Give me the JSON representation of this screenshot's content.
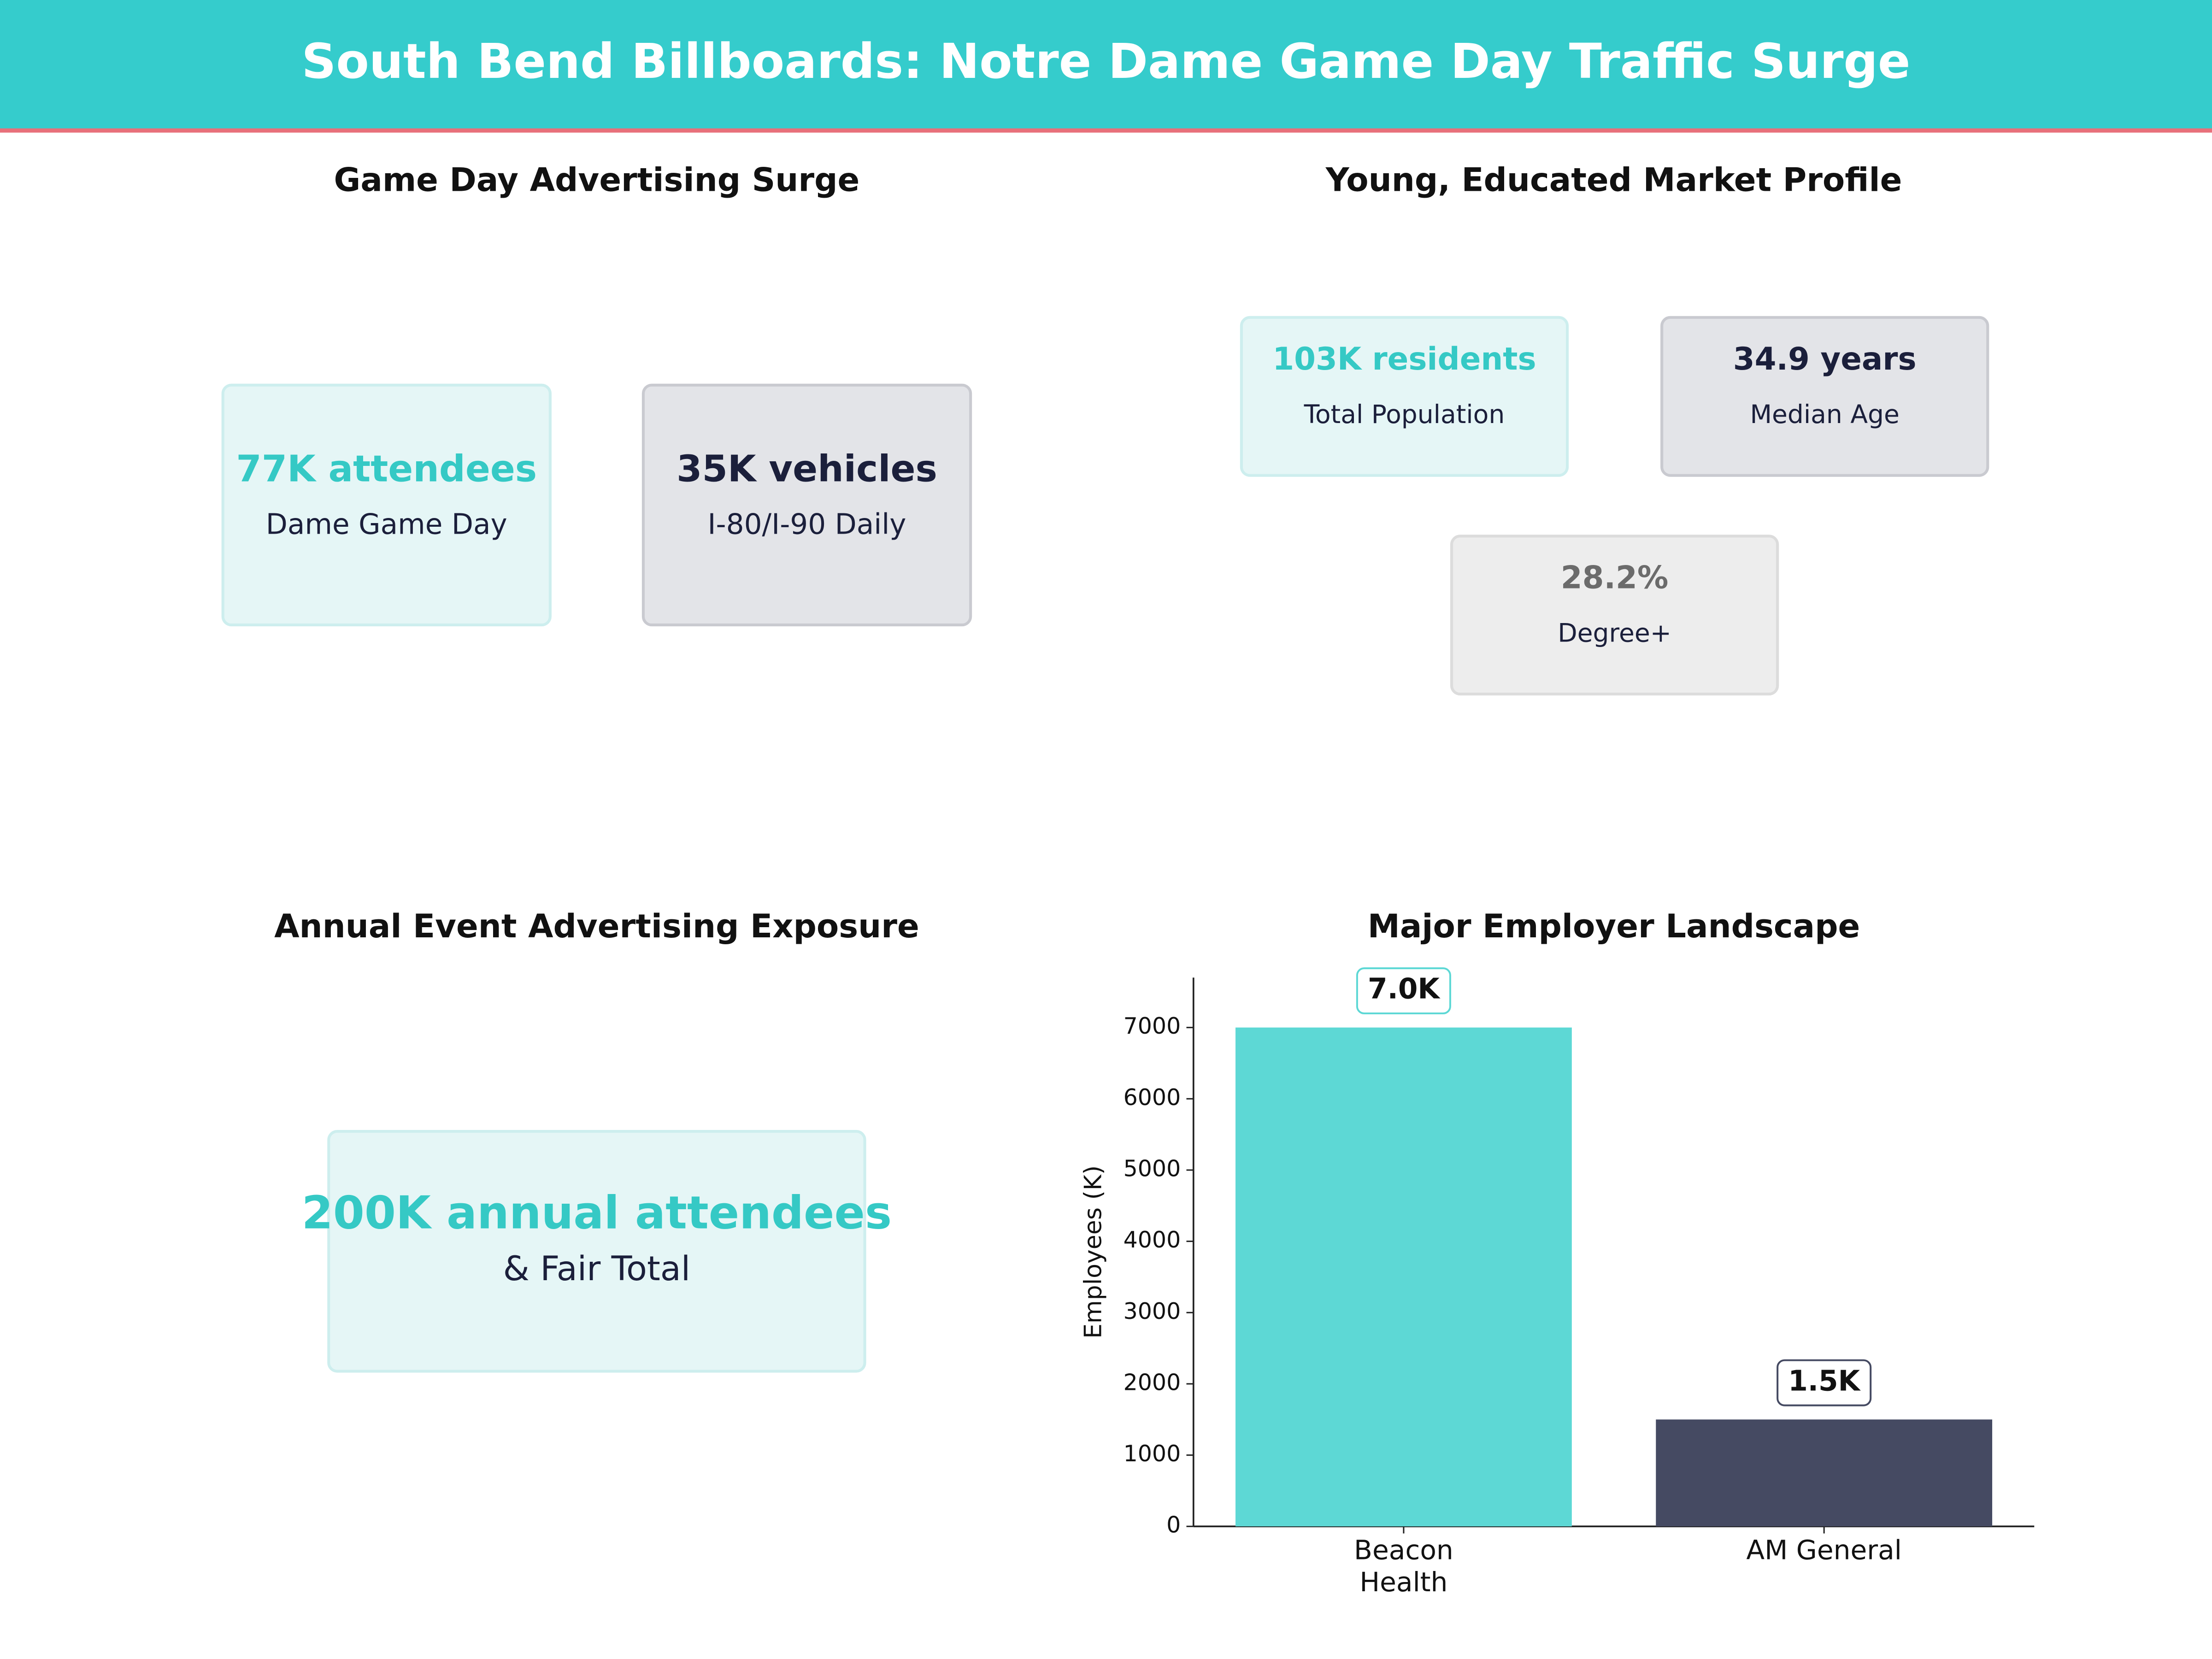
{
  "header": {
    "title": "South Bend Billboards: Notre Dame Game Day Traffic Surge"
  },
  "panels": [
    {
      "title": "Game Day Advertising Surge",
      "cards": [
        {
          "value": "77K attendees",
          "label": "Dame Game Day"
        },
        {
          "value": "35K vehicles",
          "label": "I-80/I-90 Daily"
        }
      ]
    },
    {
      "title": "Young, Educated Market Profile",
      "cards": [
        {
          "value": "103K residents",
          "label": "Total Population"
        },
        {
          "value": "34.9 years",
          "label": "Median Age"
        },
        {
          "value": "28.2%",
          "label": "Degree+"
        }
      ]
    },
    {
      "title": "Annual Event Advertising Exposure",
      "cards": [
        {
          "value": "200K annual attendees",
          "label": "& Fair Total"
        }
      ]
    }
  ],
  "chart_data": {
    "type": "bar",
    "title": "Major Employer Landscape",
    "y_label": "Employees (K)",
    "categories": [
      "Beacon\nHealth",
      "AM General"
    ],
    "values": [
      7000,
      1500
    ],
    "value_labels": [
      "7.0K",
      "1.5K"
    ],
    "colors": [
      "#5dd8d5",
      "#454a62"
    ],
    "ylim": [
      0,
      7700
    ],
    "yticks": [
      0,
      1000,
      2000,
      3000,
      4000,
      5000,
      6000,
      7000
    ]
  }
}
